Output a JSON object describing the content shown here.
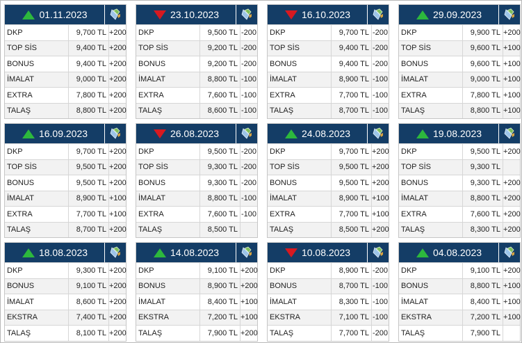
{
  "icon_name": "flag-icon",
  "colors": {
    "header": "#143d66",
    "up": "#2db83d",
    "down": "#d71920"
  },
  "cards": [
    {
      "date": "01.11.2023",
      "trend": "up",
      "rows": [
        {
          "name": "DKP",
          "price": "9,700 TL",
          "change": "+200"
        },
        {
          "name": "TOP SİS",
          "price": "9,400 TL",
          "change": "+200"
        },
        {
          "name": "BONUS",
          "price": "9,400 TL",
          "change": "+200"
        },
        {
          "name": "İMALAT",
          "price": "9,000 TL",
          "change": "+200"
        },
        {
          "name": "EXTRA",
          "price": "7,800 TL",
          "change": "+200"
        },
        {
          "name": "TALAŞ",
          "price": "8,800 TL",
          "change": "+200"
        }
      ]
    },
    {
      "date": "23.10.2023",
      "trend": "down",
      "rows": [
        {
          "name": "DKP",
          "price": "9,500 TL",
          "change": "-200"
        },
        {
          "name": "TOP SİS",
          "price": "9,200 TL",
          "change": "-200"
        },
        {
          "name": "BONUS",
          "price": "9,200 TL",
          "change": "-200"
        },
        {
          "name": "İMALAT",
          "price": "8,800 TL",
          "change": "-100"
        },
        {
          "name": "EXTRA",
          "price": "7,600 TL",
          "change": "-100"
        },
        {
          "name": "TALAŞ",
          "price": "8,600 TL",
          "change": "-100"
        }
      ]
    },
    {
      "date": "16.10.2023",
      "trend": "down",
      "rows": [
        {
          "name": "DKP",
          "price": "9,700 TL",
          "change": "-200"
        },
        {
          "name": "TOP SİS",
          "price": "9,400 TL",
          "change": "-200"
        },
        {
          "name": "BONUS",
          "price": "9,400 TL",
          "change": "-200"
        },
        {
          "name": "İMALAT",
          "price": "8,900 TL",
          "change": "-100"
        },
        {
          "name": "EXTRA",
          "price": "7,700 TL",
          "change": "-100"
        },
        {
          "name": "TALAŞ",
          "price": "8,700 TL",
          "change": "-100"
        }
      ]
    },
    {
      "date": "29.09.2023",
      "trend": "up",
      "rows": [
        {
          "name": "DKP",
          "price": "9,900 TL",
          "change": "+200"
        },
        {
          "name": "TOP SİS",
          "price": "9,600 TL",
          "change": "+100"
        },
        {
          "name": "BONUS",
          "price": "9,600 TL",
          "change": "+100"
        },
        {
          "name": "İMALAT",
          "price": "9,000 TL",
          "change": "+100"
        },
        {
          "name": "EXTRA",
          "price": "7,800 TL",
          "change": "+100"
        },
        {
          "name": "TALAŞ",
          "price": "8,800 TL",
          "change": "+100"
        }
      ]
    },
    {
      "date": "16.09.2023",
      "trend": "up",
      "rows": [
        {
          "name": "DKP",
          "price": "9,700 TL",
          "change": "+200"
        },
        {
          "name": "TOP SİS",
          "price": "9,500 TL",
          "change": "+200"
        },
        {
          "name": "BONUS",
          "price": "9,500 TL",
          "change": "+200"
        },
        {
          "name": "İMALAT",
          "price": "8,900 TL",
          "change": "+100"
        },
        {
          "name": "EXTRA",
          "price": "7,700 TL",
          "change": "+100"
        },
        {
          "name": "TALAŞ",
          "price": "8,700 TL",
          "change": "+200"
        }
      ]
    },
    {
      "date": "26.08.2023",
      "trend": "down",
      "rows": [
        {
          "name": "DKP",
          "price": "9,500 TL",
          "change": "-200"
        },
        {
          "name": "TOP SİS",
          "price": "9,300 TL",
          "change": "-200"
        },
        {
          "name": "BONUS",
          "price": "9,300 TL",
          "change": "-200"
        },
        {
          "name": "İMALAT",
          "price": "8,800 TL",
          "change": "-100"
        },
        {
          "name": "EXTRA",
          "price": "7,600 TL",
          "change": "-100"
        },
        {
          "name": "TALAŞ",
          "price": "8,500 TL",
          "change": ""
        }
      ]
    },
    {
      "date": "24.08.2023",
      "trend": "up",
      "rows": [
        {
          "name": "DKP",
          "price": "9,700 TL",
          "change": "+200"
        },
        {
          "name": "TOP SİS",
          "price": "9,500 TL",
          "change": "+200"
        },
        {
          "name": "BONUS",
          "price": "9,500 TL",
          "change": "+200"
        },
        {
          "name": "İMALAT",
          "price": "8,900 TL",
          "change": "+100"
        },
        {
          "name": "EXTRA",
          "price": "7,700 TL",
          "change": "+100"
        },
        {
          "name": "TALAŞ",
          "price": "8,500 TL",
          "change": "+200"
        }
      ]
    },
    {
      "date": "19.08.2023",
      "trend": "up",
      "rows": [
        {
          "name": "DKP",
          "price": "9,500 TL",
          "change": "+200"
        },
        {
          "name": "TOP SİS",
          "price": "9,300 TL",
          "change": ""
        },
        {
          "name": "BONUS",
          "price": "9,300 TL",
          "change": "+200"
        },
        {
          "name": "İMALAT",
          "price": "8,800 TL",
          "change": "+200"
        },
        {
          "name": "EXTRA",
          "price": "7,600 TL",
          "change": "+200"
        },
        {
          "name": "TALAŞ",
          "price": "8,300 TL",
          "change": "+200"
        }
      ]
    },
    {
      "date": "18.08.2023",
      "trend": "up",
      "rows": [
        {
          "name": "DKP",
          "price": "9,300 TL",
          "change": "+200"
        },
        {
          "name": "BONUS",
          "price": "9,100 TL",
          "change": "+200"
        },
        {
          "name": "İMALAT",
          "price": "8,600 TL",
          "change": "+200"
        },
        {
          "name": "EKSTRA",
          "price": "7,400 TL",
          "change": "+200"
        },
        {
          "name": "TALAŞ",
          "price": "8,100 TL",
          "change": "+200"
        }
      ]
    },
    {
      "date": "14.08.2023",
      "trend": "up",
      "rows": [
        {
          "name": "DKP",
          "price": "9,100 TL",
          "change": "+200"
        },
        {
          "name": "BONUS",
          "price": "8,900 TL",
          "change": "+200"
        },
        {
          "name": "İMALAT",
          "price": "8,400 TL",
          "change": "+100"
        },
        {
          "name": "EKSTRA",
          "price": "7,200 TL",
          "change": "+100"
        },
        {
          "name": "TALAŞ",
          "price": "7,900 TL",
          "change": "+200"
        }
      ]
    },
    {
      "date": "10.08.2023",
      "trend": "down",
      "rows": [
        {
          "name": "DKP",
          "price": "8,900 TL",
          "change": "-200"
        },
        {
          "name": "BONUS",
          "price": "8,700 TL",
          "change": "-100"
        },
        {
          "name": "İMALAT",
          "price": "8,300 TL",
          "change": "-100"
        },
        {
          "name": "EKSTRA",
          "price": "7,100 TL",
          "change": "-100"
        },
        {
          "name": "TALAŞ",
          "price": "7,700 TL",
          "change": "-200"
        }
      ]
    },
    {
      "date": "04.08.2023",
      "trend": "up",
      "rows": [
        {
          "name": "DKP",
          "price": "9,100 TL",
          "change": "+200"
        },
        {
          "name": "BONUS",
          "price": "8,800 TL",
          "change": "+100"
        },
        {
          "name": "İMALAT",
          "price": "8,400 TL",
          "change": "+100"
        },
        {
          "name": "EKSTRA",
          "price": "7,200 TL",
          "change": "+100"
        },
        {
          "name": "TALAŞ",
          "price": "7,900 TL",
          "change": ""
        }
      ]
    }
  ]
}
